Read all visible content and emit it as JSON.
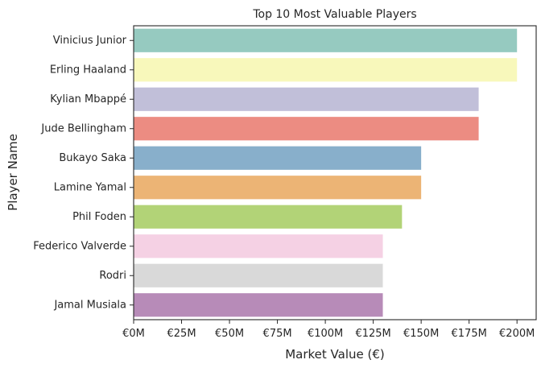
{
  "chart_data": {
    "type": "bar",
    "orientation": "horizontal",
    "title": "Top 10 Most Valuable Players",
    "xlabel": "Market Value (€)",
    "ylabel": "Player Name",
    "xlim": [
      0,
      210
    ],
    "grid": false,
    "legend": "none",
    "categories": [
      "Vinicius Junior",
      "Erling Haaland",
      "Kylian Mbappé",
      "Jude Bellingham",
      "Bukayo Saka",
      "Lamine Yamal",
      "Phil Foden",
      "Federico Valverde",
      "Rodri",
      "Jamal Musiala"
    ],
    "values": [
      200,
      200,
      180,
      180,
      150,
      150,
      140,
      130,
      130,
      130
    ],
    "colors": [
      "#96cac0",
      "#f8f8bb",
      "#c1bfd9",
      "#ec8c82",
      "#88afcb",
      "#ecb475",
      "#b2d377",
      "#f5d1e4",
      "#d9d9d9",
      "#b78bb8"
    ],
    "x_ticks": [
      0,
      25,
      50,
      75,
      100,
      125,
      150,
      175,
      200
    ],
    "x_tick_labels": [
      "€0M",
      "€25M",
      "€50M",
      "€75M",
      "€100M",
      "€125M",
      "€150M",
      "€175M",
      "€200M"
    ]
  }
}
